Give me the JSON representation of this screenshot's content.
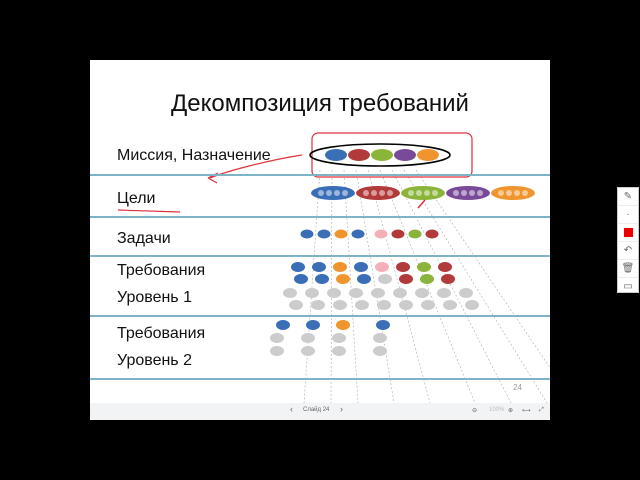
{
  "slide": {
    "title": "Декомпозиция требований",
    "labels": [
      "Миссия, Назначение",
      "Цели",
      "Задачи",
      "Требования",
      "Уровень 1",
      "Требования",
      "Уровень 2"
    ],
    "page_number": "24",
    "colors": {
      "blue": "#3a6fb8",
      "red": "#b33a3a",
      "green": "#8ab43a",
      "purple": "#7a4a9a",
      "orange": "#f0952e",
      "divider": "#7fb3c6",
      "annotation": "#e0303a"
    }
  },
  "viewer": {
    "slide_label": "Слайд 24",
    "zoom": "100%",
    "prev": "‹",
    "next": "›"
  },
  "tools": [
    "pen-icon",
    "dot-icon",
    "color-icon",
    "undo-icon",
    "trash-icon",
    "whiteboard-icon"
  ]
}
